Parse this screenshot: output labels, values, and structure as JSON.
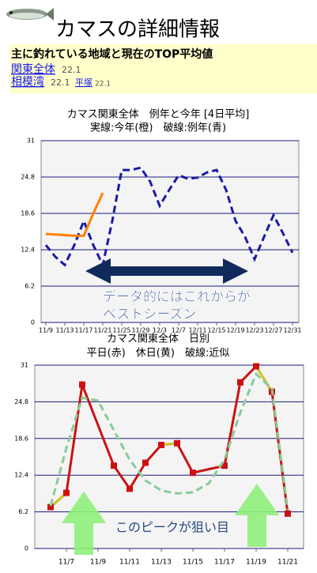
{
  "header": {
    "title": "カマスの詳細情報"
  },
  "summary": {
    "heading": "主に釣れている地域と現在のTOP平均値",
    "areas": [
      {
        "label": "関東全体",
        "value": "22.1"
      },
      {
        "label": "相模湾",
        "value": "22.1"
      },
      {
        "label": "平塚",
        "value": "22.1"
      }
    ]
  },
  "chart_data": [
    {
      "type": "line",
      "title": "カマス関東全体　例年と今年 [4日平均]",
      "subtitle": "実線:今年(橙)　破線:例年(青)",
      "xlim": [
        "11/8",
        "12/31"
      ],
      "xticks": [
        "11/9",
        "11/13",
        "11/17",
        "11/21",
        "11/25",
        "11/29",
        "12/3",
        "12/7",
        "12/11",
        "12/15",
        "12/19",
        "12/23",
        "12/27",
        "12/31"
      ],
      "ylim": [
        0,
        31
      ],
      "yticks": [
        0,
        6.2,
        12.4,
        18.6,
        24.8,
        31
      ],
      "grid": true,
      "series": [
        {
          "color": "#1a1aa6",
          "dashed": true,
          "x": [
            "11/9",
            "11/11",
            "11/13",
            "11/15",
            "11/17",
            "11/19",
            "11/21",
            "11/23",
            "11/25",
            "11/27",
            "11/29",
            "12/1",
            "12/3",
            "12/5",
            "12/7",
            "12/9",
            "12/11",
            "12/13",
            "12/15",
            "12/17",
            "12/19",
            "12/21",
            "12/23",
            "12/25",
            "12/27",
            "12/29",
            "12/31"
          ],
          "values": [
            13.2,
            11.2,
            9.8,
            13.2,
            17.3,
            13.2,
            9.8,
            17.3,
            26.0,
            26.0,
            26.4,
            24.0,
            19.9,
            22.6,
            25.1,
            24.5,
            24.7,
            25.6,
            26.0,
            22.6,
            17.3,
            14.6,
            10.8,
            14.6,
            18.3,
            15.2,
            11.9
          ]
        },
        {
          "color": "#ff8000",
          "dashed": false,
          "x": [
            "11/9",
            "11/11",
            "11/13",
            "11/15",
            "11/17",
            "11/19",
            "11/21"
          ],
          "values": [
            15.1,
            15.0,
            14.9,
            14.8,
            14.8,
            18.6,
            22.1
          ]
        }
      ],
      "annotation": [
        "データ的にはこれからが",
        "ベストシーズン"
      ]
    },
    {
      "type": "line",
      "title": "カマス関東全体　日別",
      "subtitle": "平日(赤)　休日(黄)　破線:近似",
      "xlim": [
        "11/5",
        "11/22"
      ],
      "xticks": [
        "11/7",
        "11/9",
        "11/11",
        "11/13",
        "11/15",
        "11/17",
        "11/19",
        "11/21"
      ],
      "ylim": [
        0,
        31
      ],
      "yticks": [
        0,
        6.2,
        12.4,
        18.6,
        24.8,
        31
      ],
      "grid": true,
      "series": [
        {
          "color": "#cc1111",
          "holiday_color": "#cccc22",
          "markers": true,
          "x": [
            "11/6",
            "11/7",
            "11/8",
            "11/10",
            "11/11",
            "11/12",
            "11/13",
            "11/14",
            "11/15",
            "11/17",
            "11/18",
            "11/19",
            "11/20",
            "11/21"
          ],
          "values": [
            7.0,
            9.4,
            27.7,
            14.0,
            10.1,
            14.5,
            17.5,
            17.8,
            12.8,
            14.0,
            28.1,
            30.8,
            26.5,
            5.9
          ],
          "holiday": [
            true,
            true,
            false,
            false,
            false,
            false,
            true,
            true,
            false,
            false,
            false,
            true,
            true,
            false
          ]
        },
        {
          "color": "#88cc99",
          "dashed": true,
          "x": [
            "11/6",
            "11/7",
            "11/8",
            "11/9",
            "11/10",
            "11/11",
            "11/12",
            "11/13",
            "11/14",
            "11/15",
            "11/16",
            "11/17",
            "11/18",
            "11/19",
            "11/20",
            "11/21"
          ],
          "values": [
            7.2,
            17,
            25.5,
            25,
            20,
            15,
            11.5,
            9.8,
            9.3,
            9.5,
            11,
            15,
            23,
            29.5,
            27,
            6.5
          ]
        }
      ],
      "annotation": [
        "このピークが狙い目"
      ]
    }
  ]
}
